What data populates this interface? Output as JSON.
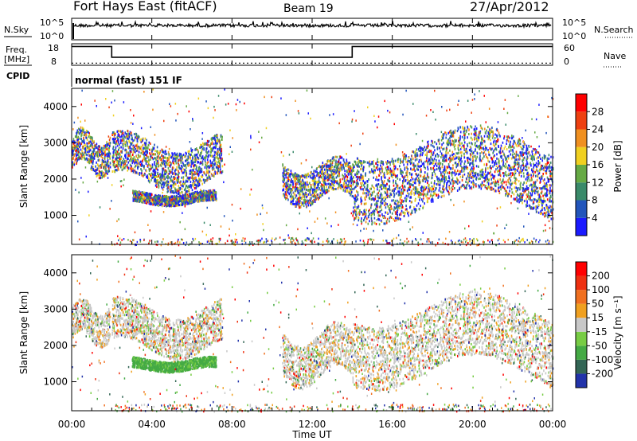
{
  "header": {
    "title": "Fort Hays East (fitACF)",
    "beam": "Beam 19",
    "date": "27/Apr/2012"
  },
  "noise_panel": {
    "left_label": "N.Sky",
    "right_label": "N.Search",
    "left_ticks": [
      "10^5",
      "10^0"
    ],
    "right_ticks": [
      "10^5",
      "10^0"
    ]
  },
  "freq_panel": {
    "left_label": "Freq.",
    "left_unit": "[MHz]",
    "right_label": "Nave",
    "left_ticks": [
      "18",
      "8"
    ],
    "right_ticks": [
      "60",
      "0"
    ],
    "freq_steps": [
      {
        "from": 0,
        "to": 2,
        "value": 16.5
      },
      {
        "from": 2,
        "to": 14,
        "value": 10.5
      },
      {
        "from": 14,
        "to": 24,
        "value": 16.5
      }
    ],
    "nave_value": 6
  },
  "cpid": {
    "label": "CPID",
    "value": "normal (fast) 151 IF"
  },
  "x_axis": {
    "title": "Time UT",
    "ticks": [
      "00:00",
      "04:00",
      "08:00",
      "12:00",
      "16:00",
      "20:00",
      "00:00"
    ]
  },
  "chart_data": [
    {
      "type": "heatmap",
      "name": "power",
      "ylabel": "Slant Range [km]",
      "yticks": [
        "1000",
        "2000",
        "3000",
        "4000"
      ],
      "ylim": [
        200,
        4500
      ],
      "xlim": [
        0,
        24
      ],
      "colorbar": {
        "label": "Power [dB]",
        "ticks": [
          "4",
          "8",
          "12",
          "16",
          "20",
          "24",
          "28"
        ],
        "colors": [
          "#1a1aff",
          "#2255bb",
          "#3a8a6a",
          "#66aa44",
          "#f0d020",
          "#f09020",
          "#ee4010",
          "#ff0000"
        ]
      },
      "bands": [
        {
          "t": [
            0.0,
            1.9
          ],
          "r": [
            2100,
            3400
          ]
        },
        {
          "t": [
            2.0,
            7.5
          ],
          "r": [
            1700,
            3300
          ]
        },
        {
          "t": [
            3.0,
            7.2
          ],
          "r": [
            1300,
            1700
          ]
        },
        {
          "t": [
            10.5,
            14.0
          ],
          "r": [
            1300,
            2600
          ]
        },
        {
          "t": [
            14.0,
            24.0
          ],
          "r": [
            900,
            3400
          ]
        }
      ]
    },
    {
      "type": "heatmap",
      "name": "velocity",
      "ylabel": "Slant Range [km]",
      "yticks": [
        "1000",
        "2000",
        "3000",
        "4000"
      ],
      "ylim": [
        200,
        4500
      ],
      "xlim": [
        0,
        24
      ],
      "colorbar": {
        "label": "Velocity [m s⁻¹]",
        "ticks": [
          "200",
          "100",
          "50",
          "15",
          "-15",
          "-50",
          "-100",
          "-200"
        ],
        "colors": [
          "#2233aa",
          "#336655",
          "#44aa44",
          "#77cc44",
          "#c8c8c8",
          "#f0a020",
          "#f07020",
          "#ee3010",
          "#ff0000"
        ]
      },
      "bands": [
        {
          "t": [
            0.0,
            1.9
          ],
          "r": [
            2000,
            3300
          ]
        },
        {
          "t": [
            2.0,
            7.5
          ],
          "r": [
            1700,
            3300
          ]
        },
        {
          "t": [
            3.0,
            7.2
          ],
          "r": [
            1300,
            1700
          ]
        },
        {
          "t": [
            10.5,
            14.0
          ],
          "r": [
            900,
            2600
          ]
        },
        {
          "t": [
            14.0,
            24.0
          ],
          "r": [
            900,
            3400
          ]
        }
      ]
    }
  ]
}
